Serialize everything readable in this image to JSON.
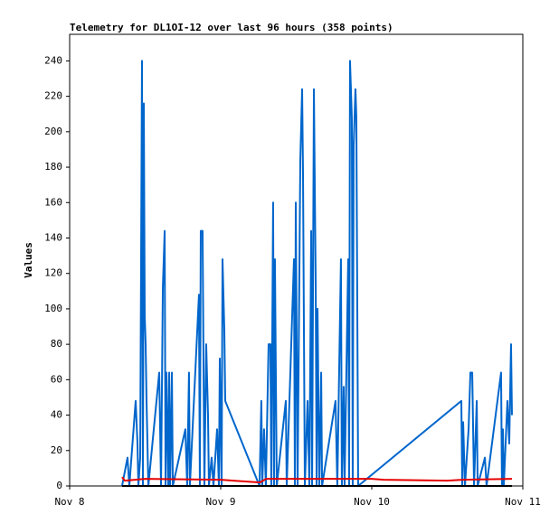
{
  "chart_data": {
    "type": "line",
    "title": "Telemetry for DL1OI-12 over last 96 hours (358 points)",
    "y_label": "Values",
    "xlim": [
      0,
      3
    ],
    "xticks": [
      {
        "value": 0,
        "label": "Nov 8"
      },
      {
        "value": 1,
        "label": "Nov 9"
      },
      {
        "value": 2,
        "label": "Nov 10"
      },
      {
        "value": 3,
        "label": "Nov 11"
      }
    ],
    "ylim": [
      0,
      255
    ],
    "yticks": [
      0,
      20,
      40,
      60,
      80,
      100,
      120,
      140,
      160,
      180,
      200,
      220,
      240
    ],
    "grid": false,
    "series": [
      {
        "color": "#0066cc",
        "x": [
          0.347,
          0.383,
          0.395,
          0.437,
          0.449,
          0.455,
          0.467,
          0.479,
          0.485,
          0.491,
          0.497,
          0.503,
          0.509,
          0.521,
          0.593,
          0.605,
          0.617,
          0.629,
          0.635,
          0.641,
          0.653,
          0.659,
          0.665,
          0.677,
          0.683,
          0.766,
          0.778,
          0.79,
          0.796,
          0.856,
          0.862,
          0.868,
          0.88,
          0.892,
          0.904,
          0.916,
          0.922,
          0.94,
          0.952,
          0.964,
          0.976,
          0.988,
          0.994,
          1.006,
          1.012,
          1.024,
          1.03,
          1.257,
          1.269,
          1.275,
          1.287,
          1.299,
          1.317,
          1.329,
          1.335,
          1.347,
          1.353,
          1.359,
          1.371,
          1.431,
          1.437,
          1.485,
          1.491,
          1.497,
          1.509,
          1.527,
          1.539,
          1.545,
          1.557,
          1.575,
          1.587,
          1.599,
          1.605,
          1.617,
          1.629,
          1.635,
          1.641,
          1.653,
          1.665,
          1.671,
          1.76,
          1.772,
          1.796,
          1.802,
          1.814,
          1.82,
          1.844,
          1.85,
          1.856,
          1.868,
          1.874,
          1.88,
          1.892,
          1.898,
          1.904,
          1.91,
          2.593,
          2.599,
          2.605,
          2.617,
          2.641,
          2.653,
          2.665,
          2.677,
          2.695,
          2.701,
          2.749,
          2.76,
          2.856,
          2.862,
          2.868,
          2.874,
          2.898,
          2.91,
          2.922,
          2.928
        ],
        "values": [
          0,
          16,
          0,
          48,
          24,
          0,
          16,
          240,
          0,
          216,
          96,
          80,
          48,
          0,
          64,
          0,
          112,
          144,
          0,
          64,
          0,
          64,
          0,
          64,
          0,
          32,
          0,
          64,
          0,
          108,
          0,
          144,
          144,
          0,
          80,
          40,
          0,
          16,
          0,
          16,
          32,
          0,
          72,
          0,
          128,
          88,
          48,
          0,
          48,
          0,
          32,
          0,
          80,
          80,
          0,
          160,
          0,
          128,
          0,
          48,
          0,
          128,
          0,
          160,
          0,
          184,
          224,
          176,
          0,
          48,
          0,
          144,
          0,
          224,
          112,
          0,
          100,
          0,
          64,
          0,
          48,
          0,
          128,
          0,
          56,
          0,
          128,
          0,
          240,
          208,
          0,
          192,
          224,
          208,
          104,
          0,
          48,
          0,
          36,
          0,
          32,
          64,
          64,
          0,
          48,
          0,
          16,
          0,
          64,
          0,
          32,
          0,
          48,
          24,
          80,
          40
        ]
      },
      {
        "color": "#e60000",
        "x": [
          0.347,
          0.365,
          0.5,
          1.0,
          1.26,
          1.3,
          2.0,
          2.08,
          2.5,
          2.6,
          2.928
        ],
        "values": [
          5,
          3,
          4,
          3.5,
          2,
          4,
          4,
          3.5,
          3,
          3.5,
          4
        ]
      },
      {
        "color": "#000000",
        "x": [
          0.347,
          2.928
        ],
        "values": [
          0,
          0
        ]
      }
    ]
  }
}
